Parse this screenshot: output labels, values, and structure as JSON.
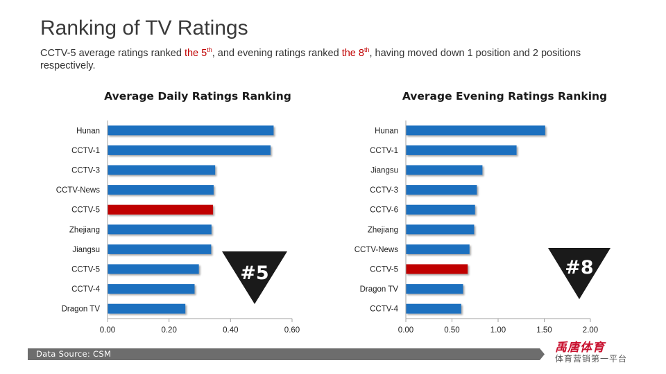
{
  "header": {
    "title": "Ranking of TV Ratings",
    "subtitle": {
      "part1": "CCTV-5 average ratings ranked ",
      "hl1": "the 5",
      "sup1": "th",
      "part2": ", and evening ratings ranked ",
      "hl2": "the 8",
      "sup2": "th",
      "part3": ", having moved down 1 position and 2 positions respectively."
    }
  },
  "colors": {
    "bar": "#1f6fbf",
    "highlight": "#c00000",
    "badge": "#1a1a1a",
    "footer": "#6d6d6d",
    "brand": "#c8102e"
  },
  "chart_data": [
    {
      "type": "bar",
      "orientation": "horizontal",
      "title": "Average Daily Ratings Ranking",
      "categories": [
        "Hunan",
        "CCTV-1",
        "CCTV-3",
        "CCTV-News",
        "CCTV-5",
        "Zhejiang",
        "Jiangsu",
        "CCTV-5",
        "CCTV-4",
        "Dragon TV"
      ],
      "values": [
        0.54,
        0.53,
        0.35,
        0.345,
        0.343,
        0.338,
        0.337,
        0.297,
        0.283,
        0.253
      ],
      "highlight_index": 4,
      "xlim": [
        0,
        0.6
      ],
      "xticks": [
        0,
        0.2,
        0.4,
        0.6
      ],
      "xtick_labels": [
        "0.00",
        "0.20",
        "0.40",
        "0.60"
      ],
      "xlabel": "",
      "ylabel": "",
      "grid": false,
      "rank_badge": "#5"
    },
    {
      "type": "bar",
      "orientation": "horizontal",
      "title": "Average Evening Ratings Ranking",
      "categories": [
        "Hunan",
        "CCTV-1",
        "Jiangsu",
        "CCTV-3",
        "CCTV-6",
        "Zhejiang",
        "CCTV-News",
        "CCTV-5",
        "Dragon TV",
        "CCTV-4"
      ],
      "values": [
        1.51,
        1.2,
        0.83,
        0.77,
        0.75,
        0.74,
        0.69,
        0.67,
        0.62,
        0.6
      ],
      "highlight_index": 7,
      "xlim": [
        0,
        2.0
      ],
      "xticks": [
        0,
        0.5,
        1.0,
        1.5,
        2.0
      ],
      "xtick_labels": [
        "0.00",
        "0.50",
        "1.00",
        "1.50",
        "2.00"
      ],
      "xlabel": "",
      "ylabel": "",
      "grid": false,
      "rank_badge": "#8"
    }
  ],
  "footer": {
    "source": "Data Source: CSM"
  },
  "brand": {
    "name": "禹唐体育",
    "slogan": "体育营销第一平台"
  }
}
